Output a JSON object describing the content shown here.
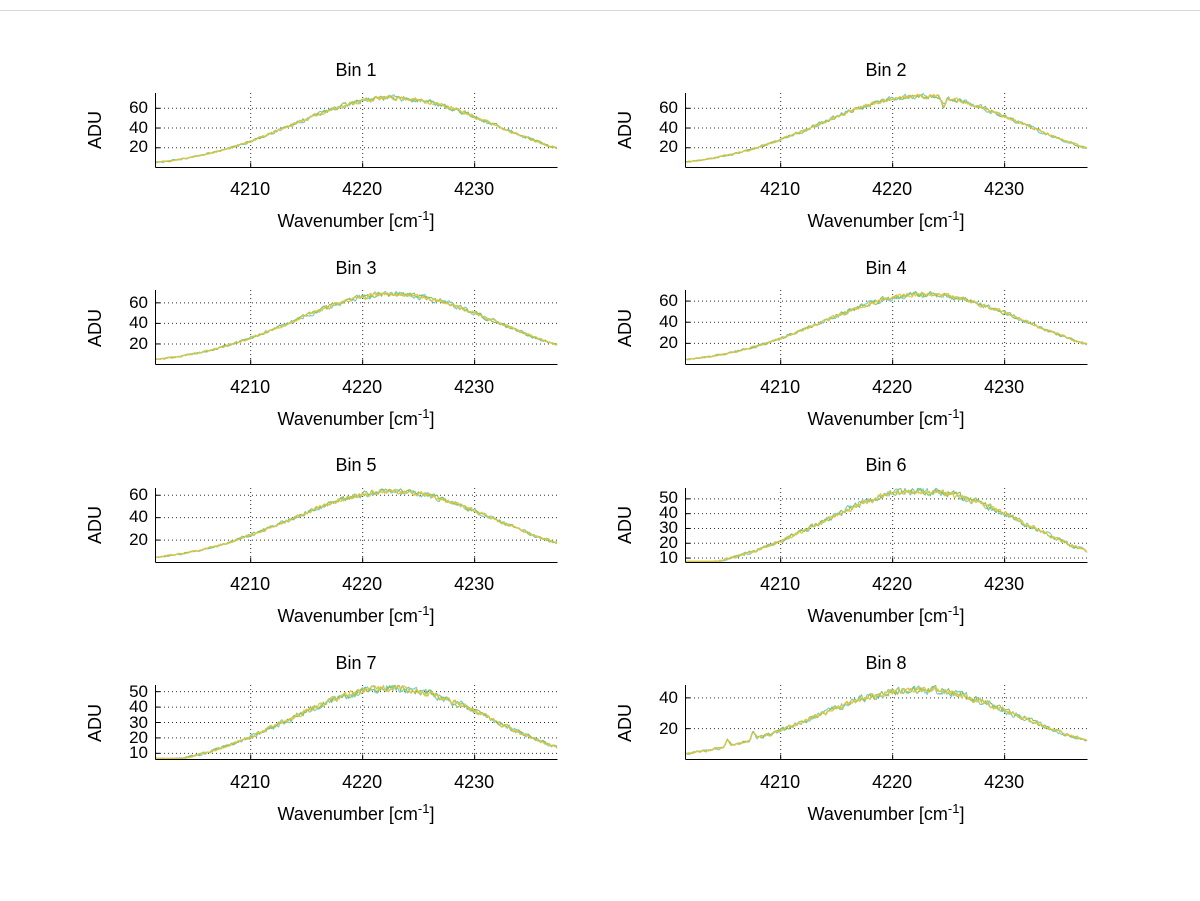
{
  "figure": {
    "background": "#ffffff",
    "top_edge_color": "#d9d9d9"
  },
  "chart_data": {
    "type": "line",
    "layout": "4x2 subplot grid",
    "xlabel": {
      "prefix": "Wavenumber [cm",
      "sup": "-1",
      "suffix": "]"
    },
    "ylabel": "ADU",
    "x_range": [
      4201.5,
      4237.4
    ],
    "xticks": [
      4210,
      4220,
      4230
    ],
    "grid": "dotted",
    "legend": "none",
    "colors": {
      "curve_main": "#e2c33e",
      "curve_under_green": "#84c45f",
      "curve_under_cyan": "#74ccc4",
      "grid": "#303030",
      "axis": "#000000",
      "background": "#ffffff"
    },
    "samples_x": [
      4202,
      4204,
      4206,
      4208,
      4210,
      4212,
      4214,
      4216,
      4218,
      4220,
      4222,
      4224,
      4226,
      4228,
      4230,
      4232,
      4234,
      4236
    ],
    "bins": [
      {
        "title": "Bin 1",
        "peak": 70,
        "center": 4222.8,
        "sigma": 9.1,
        "ylim": [
          0,
          75
        ],
        "yticks": [
          20,
          40,
          60
        ],
        "seed": 11,
        "spikes": [],
        "samples_adu": [
          5,
          8,
          13,
          19,
          26,
          35,
          44,
          53,
          61,
          67,
          70,
          69,
          66,
          59,
          51,
          42,
          33,
          24
        ]
      },
      {
        "title": "Bin 2",
        "peak": 72,
        "center": 4222.6,
        "sigma": 9.1,
        "ylim": [
          0,
          75
        ],
        "yticks": [
          20,
          40,
          60
        ],
        "seed": 23,
        "spikes": [
          {
            "x": 4224.6,
            "dy": -10
          }
        ],
        "samples_adu": [
          5,
          9,
          13,
          19,
          27,
          36,
          45,
          54,
          63,
          69,
          72,
          71,
          68,
          61,
          53,
          43,
          34,
          25
        ]
      },
      {
        "title": "Bin 3",
        "peak": 68,
        "center": 4222.8,
        "sigma": 9.1,
        "ylim": [
          0,
          72
        ],
        "yticks": [
          20,
          40,
          60
        ],
        "seed": 37,
        "spikes": [],
        "samples_adu": [
          5,
          8,
          12,
          18,
          25,
          34,
          43,
          51,
          59,
          65,
          68,
          67,
          64,
          58,
          50,
          41,
          32,
          24
        ]
      },
      {
        "title": "Bin 4",
        "peak": 66,
        "center": 4222.9,
        "sigma": 9.1,
        "ylim": [
          0,
          70
        ],
        "yticks": [
          20,
          40,
          60
        ],
        "seed": 41,
        "spikes": [],
        "samples_adu": [
          5,
          8,
          12,
          18,
          25,
          33,
          41,
          50,
          57,
          63,
          66,
          65,
          62,
          56,
          48,
          40,
          31,
          23
        ]
      },
      {
        "title": "Bin 5",
        "peak": 63,
        "center": 4222.7,
        "sigma": 9.1,
        "ylim": [
          0,
          66
        ],
        "yticks": [
          20,
          40,
          60
        ],
        "seed": 53,
        "spikes": [],
        "samples_adu": [
          5,
          7,
          11,
          17,
          23,
          31,
          39,
          48,
          55,
          60,
          63,
          62,
          59,
          53,
          46,
          38,
          30,
          22
        ]
      },
      {
        "title": "Bin 6",
        "peak": 55,
        "center": 4222.6,
        "sigma": 9.1,
        "ylim": [
          7,
          57
        ],
        "yticks": [
          10,
          20,
          30,
          40,
          50
        ],
        "seed": 67,
        "spikes": [],
        "samples_adu": [
          4,
          6,
          10,
          15,
          20,
          27,
          34,
          42,
          48,
          52,
          55,
          55,
          52,
          47,
          40,
          33,
          26,
          19
        ]
      },
      {
        "title": "Bin 7",
        "peak": 52,
        "center": 4222.5,
        "sigma": 9.1,
        "ylim": [
          6,
          54
        ],
        "yticks": [
          10,
          20,
          30,
          40,
          50
        ],
        "seed": 71,
        "spikes": [],
        "samples_adu": [
          4,
          6,
          9,
          14,
          19,
          26,
          33,
          39,
          45,
          50,
          52,
          52,
          49,
          44,
          38,
          31,
          24,
          18
        ]
      },
      {
        "title": "Bin 8",
        "peak": 45,
        "center": 4222.3,
        "sigma": 9.2,
        "ylim": [
          0,
          48
        ],
        "yticks": [
          20,
          40
        ],
        "seed": 83,
        "spikes": [
          {
            "x": 4205.3,
            "dy": 4.5
          },
          {
            "x": 4207.6,
            "dy": 5.5
          }
        ],
        "samples_adu": [
          3,
          5,
          8,
          12,
          17,
          22,
          28,
          34,
          39,
          43,
          45,
          45,
          42,
          38,
          33,
          27,
          21,
          16
        ]
      }
    ]
  }
}
